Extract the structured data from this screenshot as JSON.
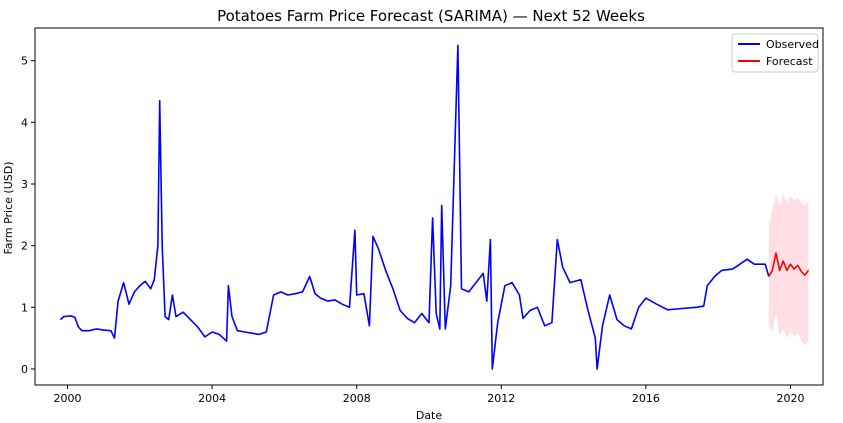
{
  "chart_data": {
    "type": "line",
    "title": "Potatoes Farm Price Forecast (SARIMA) — Next 52 Weeks",
    "xlabel": "Date",
    "ylabel": "Farm Price (USD)",
    "xlim": [
      1999.1,
      2020.9
    ],
    "ylim": [
      -0.26,
      5.53
    ],
    "xticks": [
      2000,
      2004,
      2008,
      2012,
      2016,
      2020
    ],
    "yticks": [
      0,
      1,
      2,
      3,
      4,
      5
    ],
    "legend": {
      "position": "top-right",
      "entries": [
        "Observed",
        "Forecast"
      ]
    },
    "series": [
      {
        "name": "Observed",
        "color": "#0000ff",
        "points": [
          [
            1999.8,
            0.8
          ],
          [
            1999.9,
            0.85
          ],
          [
            2000.1,
            0.86
          ],
          [
            2000.2,
            0.84
          ],
          [
            2000.3,
            0.68
          ],
          [
            2000.4,
            0.62
          ],
          [
            2000.6,
            0.62
          ],
          [
            2000.8,
            0.65
          ],
          [
            2001.0,
            0.63
          ],
          [
            2001.2,
            0.62
          ],
          [
            2001.3,
            0.5
          ],
          [
            2001.4,
            1.1
          ],
          [
            2001.55,
            1.4
          ],
          [
            2001.7,
            1.05
          ],
          [
            2001.85,
            1.25
          ],
          [
            2002.0,
            1.35
          ],
          [
            2002.15,
            1.42
          ],
          [
            2002.3,
            1.3
          ],
          [
            2002.4,
            1.45
          ],
          [
            2002.5,
            2.0
          ],
          [
            2002.55,
            4.35
          ],
          [
            2002.62,
            2.0
          ],
          [
            2002.7,
            0.85
          ],
          [
            2002.8,
            0.8
          ],
          [
            2002.9,
            1.2
          ],
          [
            2003.0,
            0.85
          ],
          [
            2003.2,
            0.92
          ],
          [
            2003.4,
            0.8
          ],
          [
            2003.6,
            0.68
          ],
          [
            2003.8,
            0.52
          ],
          [
            2004.0,
            0.6
          ],
          [
            2004.2,
            0.56
          ],
          [
            2004.4,
            0.45
          ],
          [
            2004.45,
            1.35
          ],
          [
            2004.55,
            0.85
          ],
          [
            2004.7,
            0.62
          ],
          [
            2004.9,
            0.6
          ],
          [
            2005.1,
            0.58
          ],
          [
            2005.3,
            0.56
          ],
          [
            2005.5,
            0.6
          ],
          [
            2005.7,
            1.2
          ],
          [
            2005.9,
            1.25
          ],
          [
            2006.1,
            1.2
          ],
          [
            2006.3,
            1.22
          ],
          [
            2006.5,
            1.25
          ],
          [
            2006.7,
            1.5
          ],
          [
            2006.85,
            1.22
          ],
          [
            2007.0,
            1.15
          ],
          [
            2007.2,
            1.1
          ],
          [
            2007.4,
            1.12
          ],
          [
            2007.6,
            1.05
          ],
          [
            2007.8,
            1.0
          ],
          [
            2007.95,
            2.25
          ],
          [
            2008.0,
            1.2
          ],
          [
            2008.2,
            1.22
          ],
          [
            2008.35,
            0.7
          ],
          [
            2008.45,
            2.15
          ],
          [
            2008.6,
            1.95
          ],
          [
            2008.8,
            1.6
          ],
          [
            2009.0,
            1.3
          ],
          [
            2009.2,
            0.95
          ],
          [
            2009.4,
            0.82
          ],
          [
            2009.6,
            0.75
          ],
          [
            2009.8,
            0.9
          ],
          [
            2010.0,
            0.75
          ],
          [
            2010.1,
            2.45
          ],
          [
            2010.2,
            0.9
          ],
          [
            2010.3,
            0.65
          ],
          [
            2010.35,
            2.65
          ],
          [
            2010.45,
            0.65
          ],
          [
            2010.6,
            1.35
          ],
          [
            2010.8,
            5.25
          ],
          [
            2010.9,
            1.3
          ],
          [
            2011.1,
            1.25
          ],
          [
            2011.3,
            1.4
          ],
          [
            2011.5,
            1.55
          ],
          [
            2011.6,
            1.1
          ],
          [
            2011.7,
            2.1
          ],
          [
            2011.75,
            0.0
          ],
          [
            2011.9,
            0.75
          ],
          [
            2012.1,
            1.35
          ],
          [
            2012.3,
            1.4
          ],
          [
            2012.5,
            1.2
          ],
          [
            2012.6,
            0.82
          ],
          [
            2012.8,
            0.95
          ],
          [
            2013.0,
            1.0
          ],
          [
            2013.2,
            0.7
          ],
          [
            2013.4,
            0.75
          ],
          [
            2013.55,
            2.1
          ],
          [
            2013.7,
            1.65
          ],
          [
            2013.9,
            1.4
          ],
          [
            2014.2,
            1.45
          ],
          [
            2014.4,
            0.95
          ],
          [
            2014.6,
            0.5
          ],
          [
            2014.65,
            0.0
          ],
          [
            2014.8,
            0.7
          ],
          [
            2015.0,
            1.2
          ],
          [
            2015.2,
            0.8
          ],
          [
            2015.4,
            0.7
          ],
          [
            2015.6,
            0.65
          ],
          [
            2015.8,
            1.0
          ],
          [
            2016.0,
            1.15
          ],
          [
            2016.3,
            1.05
          ],
          [
            2016.6,
            0.96
          ],
          [
            2017.0,
            0.98
          ],
          [
            2017.4,
            1.0
          ],
          [
            2017.6,
            1.02
          ],
          [
            2017.7,
            1.35
          ],
          [
            2017.9,
            1.5
          ],
          [
            2018.1,
            1.6
          ],
          [
            2018.4,
            1.62
          ],
          [
            2018.6,
            1.7
          ],
          [
            2018.8,
            1.78
          ],
          [
            2019.0,
            1.7
          ],
          [
            2019.3,
            1.7
          ],
          [
            2019.4,
            1.5
          ]
        ]
      },
      {
        "name": "Forecast",
        "color": "#ff0000",
        "points": [
          [
            2019.4,
            1.5
          ],
          [
            2019.5,
            1.6
          ],
          [
            2019.6,
            1.88
          ],
          [
            2019.7,
            1.6
          ],
          [
            2019.8,
            1.75
          ],
          [
            2019.9,
            1.6
          ],
          [
            2020.0,
            1.7
          ],
          [
            2020.1,
            1.62
          ],
          [
            2020.2,
            1.68
          ],
          [
            2020.3,
            1.58
          ],
          [
            2020.4,
            1.52
          ],
          [
            2020.5,
            1.6
          ]
        ],
        "upper": [
          2.3,
          2.6,
          2.85,
          2.65,
          2.85,
          2.7,
          2.8,
          2.72,
          2.78,
          2.7,
          2.65,
          2.72
        ],
        "lower": [
          0.7,
          0.6,
          0.9,
          0.55,
          0.65,
          0.5,
          0.6,
          0.52,
          0.58,
          0.46,
          0.38,
          0.45
        ]
      }
    ]
  }
}
